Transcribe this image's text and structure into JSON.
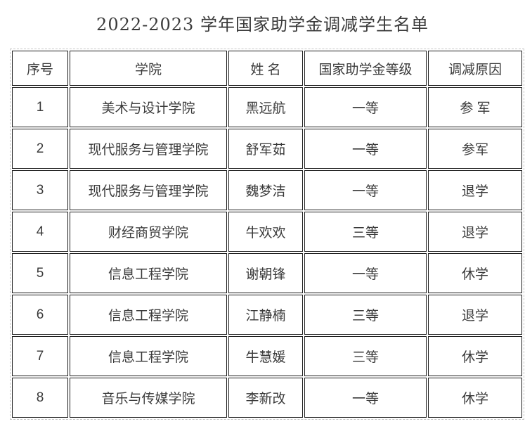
{
  "title": "2022-2023 学年国家助学金调减学生名单",
  "table": {
    "headers": [
      "序号",
      "学院",
      "姓 名",
      "国家助学金等级",
      "调减原因"
    ],
    "rows": [
      [
        "1",
        "美术与设计学院",
        "黑远航",
        "一等",
        "参 军"
      ],
      [
        "2",
        "现代服务与管理学院",
        "舒军茹",
        "一等",
        "参军"
      ],
      [
        "3",
        "现代服务与管理学院",
        "魏梦洁",
        "一等",
        "退学"
      ],
      [
        "4",
        "财经商贸学院",
        "牛欢欢",
        "三等",
        "退学"
      ],
      [
        "5",
        "信息工程学院",
        "谢朝锋",
        "一等",
        "休学"
      ],
      [
        "6",
        "信息工程学院",
        "江静楠",
        "三等",
        "退学"
      ],
      [
        "7",
        "信息工程学院",
        "牛慧媛",
        "三等",
        "休学"
      ],
      [
        "8",
        "音乐与传媒学院",
        "李新改",
        "一等",
        "休学"
      ]
    ]
  },
  "colors": {
    "text": "#3a3a3a",
    "cell_border": "#1f1f1f",
    "outer_border_dashed": "#c9c9c9",
    "background": "#ffffff"
  }
}
